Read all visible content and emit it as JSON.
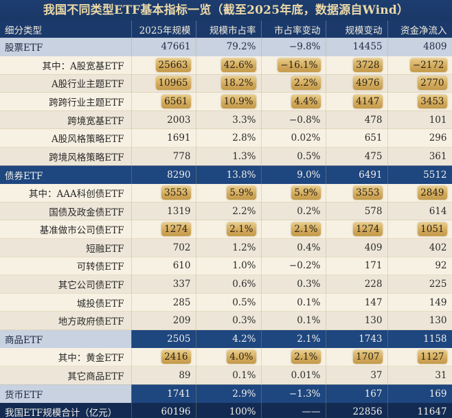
{
  "title": "我国不同类型ETF基本指标一览（截至2025年底，数据源自Wind）",
  "headers": [
    "细分类型",
    "2025年规模",
    "规模市占率",
    "市占率变动",
    "规模变动",
    "资金净流入"
  ],
  "rows": [
    {
      "kind": "cat-light",
      "label": "股票ETF",
      "values": [
        "47661",
        "79.2%",
        "−9.8%",
        "14455",
        "4809"
      ],
      "highlight": [
        false,
        false,
        false,
        false,
        false
      ]
    },
    {
      "kind": "sub",
      "label": "其中：A股宽基ETF",
      "values": [
        "25663",
        "42.6%",
        "−16.1%",
        "3728",
        "−2172"
      ],
      "highlight": [
        true,
        true,
        true,
        true,
        true
      ]
    },
    {
      "kind": "sub",
      "label": "A股行业主题ETF",
      "values": [
        "10965",
        "18.2%",
        "2.2%",
        "4976",
        "2770"
      ],
      "highlight": [
        true,
        true,
        true,
        true,
        true
      ]
    },
    {
      "kind": "sub",
      "label": "跨跨行业主题ETF",
      "values": [
        "6561",
        "10.9%",
        "4.4%",
        "4147",
        "3453"
      ],
      "highlight": [
        true,
        true,
        true,
        true,
        true
      ]
    },
    {
      "kind": "sub",
      "label": "跨境宽基ETF",
      "values": [
        "2003",
        "3.3%",
        "−0.8%",
        "478",
        "101"
      ],
      "highlight": [
        false,
        false,
        false,
        false,
        false
      ]
    },
    {
      "kind": "sub",
      "label": "A股风格策略ETF",
      "values": [
        "1691",
        "2.8%",
        "0.02%",
        "651",
        "296"
      ],
      "highlight": [
        false,
        false,
        false,
        false,
        false
      ]
    },
    {
      "kind": "sub",
      "label": "跨境风格策略ETF",
      "values": [
        "778",
        "1.3%",
        "0.5%",
        "475",
        "361"
      ],
      "highlight": [
        false,
        false,
        false,
        false,
        false
      ]
    },
    {
      "kind": "cat-dark",
      "label": "债券ETF",
      "values": [
        "8290",
        "13.8%",
        "9.0%",
        "6491",
        "5512"
      ],
      "highlight": [
        false,
        false,
        false,
        false,
        false
      ]
    },
    {
      "kind": "sub",
      "label": "其中：AAA科创债ETF",
      "values": [
        "3553",
        "5.9%",
        "5.9%",
        "3553",
        "2849"
      ],
      "highlight": [
        true,
        true,
        true,
        true,
        true
      ]
    },
    {
      "kind": "sub",
      "label": "国债及政金债ETF",
      "values": [
        "1319",
        "2.2%",
        "0.2%",
        "578",
        "614"
      ],
      "highlight": [
        false,
        false,
        false,
        false,
        false
      ]
    },
    {
      "kind": "sub",
      "label": "基准做市公司债ETF",
      "values": [
        "1274",
        "2.1%",
        "2.1%",
        "1274",
        "1051"
      ],
      "highlight": [
        true,
        true,
        true,
        true,
        true
      ]
    },
    {
      "kind": "sub",
      "label": "短融ETF",
      "values": [
        "702",
        "1.2%",
        "0.4%",
        "409",
        "402"
      ],
      "highlight": [
        false,
        false,
        false,
        false,
        false
      ]
    },
    {
      "kind": "sub",
      "label": "可转债ETF",
      "values": [
        "610",
        "1.0%",
        "−0.2%",
        "171",
        "92"
      ],
      "highlight": [
        false,
        false,
        false,
        false,
        false
      ]
    },
    {
      "kind": "sub",
      "label": "其它公司债ETF",
      "values": [
        "337",
        "0.6%",
        "0.3%",
        "228",
        "225"
      ],
      "highlight": [
        false,
        false,
        false,
        false,
        false
      ]
    },
    {
      "kind": "sub",
      "label": "城投债ETF",
      "values": [
        "285",
        "0.5%",
        "0.1%",
        "147",
        "149"
      ],
      "highlight": [
        false,
        false,
        false,
        false,
        false
      ]
    },
    {
      "kind": "sub",
      "label": "地方政府债ETF",
      "values": [
        "209",
        "0.3%",
        "0.1%",
        "130",
        "130"
      ],
      "highlight": [
        false,
        false,
        false,
        false,
        false
      ]
    },
    {
      "kind": "cat-split",
      "label": "商品ETF",
      "values": [
        "2505",
        "4.2%",
        "2.1%",
        "1743",
        "1158"
      ],
      "highlight": [
        false,
        false,
        false,
        false,
        false
      ]
    },
    {
      "kind": "sub",
      "label": "其中：黄金ETF",
      "values": [
        "2416",
        "4.0%",
        "2.1%",
        "1707",
        "1127"
      ],
      "highlight": [
        true,
        true,
        true,
        true,
        true
      ]
    },
    {
      "kind": "sub",
      "label": "其它商品ETF",
      "values": [
        "89",
        "0.1%",
        "0.01%",
        "37",
        "31"
      ],
      "highlight": [
        false,
        false,
        false,
        false,
        false
      ]
    },
    {
      "kind": "cat-split",
      "label": "货币ETF",
      "values": [
        "1741",
        "2.9%",
        "−1.3%",
        "167",
        "169"
      ],
      "highlight": [
        false,
        false,
        false,
        false,
        false
      ]
    },
    {
      "kind": "total",
      "label": "我国ETF规模合计（亿元）",
      "values": [
        "60196",
        "100%",
        "——",
        "22856",
        "11647"
      ],
      "highlight": [
        false,
        false,
        false,
        false,
        false
      ]
    }
  ],
  "colors": {
    "header_bg": "#1b3a6b",
    "title_text": "#ecd9a8",
    "category_light_bg": "#c8d2e0",
    "category_dark_bg": "#1e467f",
    "total_bg": "#132b52",
    "row_odd_bg": "#f7f1e3",
    "row_even_bg": "#ede6d8",
    "highlight_gold": "#d3ab5e"
  }
}
